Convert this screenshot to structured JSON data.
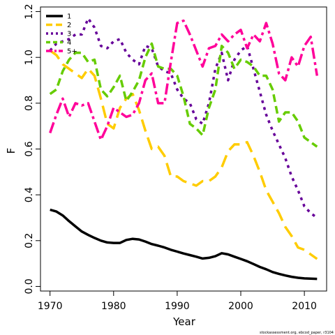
{
  "chart_data": {
    "type": "line",
    "xlabel": "Year",
    "ylabel": "F",
    "xlim": [
      1968.5,
      2013.5
    ],
    "ylim": [
      -0.02,
      1.22
    ],
    "xticks": [
      1970,
      1980,
      1990,
      2000,
      2010
    ],
    "yticks": [
      0.0,
      0.2,
      0.4,
      0.6,
      0.8,
      1.0,
      1.2
    ],
    "ytick_labels": [
      "0.0",
      "0.2",
      "0.4",
      "0.6",
      "0.8",
      "1.0",
      "1.2"
    ],
    "grid": false,
    "legend_position": "top-left",
    "footer": "stockassessment.org, ebcod_paper, r3104",
    "x": [
      1970,
      1971,
      1972,
      1973,
      1974,
      1975,
      1976,
      1977,
      1978,
      1979,
      1980,
      1981,
      1982,
      1983,
      1984,
      1985,
      1986,
      1987,
      1988,
      1989,
      1990,
      1991,
      1992,
      1993,
      1994,
      1995,
      1996,
      1997,
      1998,
      1999,
      2000,
      2001,
      2002,
      2003,
      2004,
      2005,
      2006,
      2007,
      2008,
      2009,
      2010,
      2011,
      2012
    ],
    "series": [
      {
        "name": "1",
        "color": "#000000",
        "dash": "solid",
        "values": [
          0.335,
          0.327,
          0.31,
          0.285,
          0.262,
          0.24,
          0.225,
          0.212,
          0.2,
          0.192,
          0.19,
          0.19,
          0.203,
          0.208,
          0.205,
          0.196,
          0.185,
          0.178,
          0.17,
          0.16,
          0.152,
          0.144,
          0.137,
          0.13,
          0.122,
          0.125,
          0.132,
          0.145,
          0.14,
          0.13,
          0.12,
          0.11,
          0.098,
          0.085,
          0.075,
          0.063,
          0.055,
          0.048,
          0.042,
          0.038,
          0.035,
          0.034,
          0.033
        ]
      },
      {
        "name": "2",
        "color": "#ffcc00",
        "dash": "long",
        "values": [
          1.03,
          1.01,
          0.97,
          0.95,
          0.93,
          0.91,
          0.95,
          0.92,
          0.82,
          0.71,
          0.69,
          0.78,
          0.82,
          0.84,
          0.77,
          0.68,
          0.6,
          0.61,
          0.57,
          0.48,
          0.48,
          0.46,
          0.45,
          0.44,
          0.46,
          0.46,
          0.48,
          0.52,
          0.59,
          0.62,
          0.62,
          0.63,
          0.57,
          0.5,
          0.42,
          0.37,
          0.32,
          0.26,
          0.22,
          0.17,
          0.16,
          0.14,
          0.12
        ]
      },
      {
        "name": "3",
        "color": "#660099",
        "dash": "dotted",
        "values": [
          1.03,
          1.06,
          1.07,
          1.08,
          1.1,
          1.1,
          1.17,
          1.13,
          1.05,
          1.04,
          1.07,
          1.08,
          1.02,
          0.99,
          0.97,
          1.05,
          1.04,
          0.96,
          0.94,
          0.93,
          0.86,
          0.82,
          0.8,
          0.73,
          0.71,
          0.8,
          0.95,
          1.02,
          0.9,
          0.99,
          1.03,
          1.05,
          0.95,
          0.85,
          0.75,
          0.68,
          0.62,
          0.56,
          0.48,
          0.42,
          0.35,
          0.32,
          0.3
        ]
      },
      {
        "name": "4",
        "color": "#66cc00",
        "dash": "medium",
        "values": [
          0.84,
          0.86,
          0.94,
          0.99,
          1.02,
          1.02,
          0.98,
          0.99,
          0.86,
          0.83,
          0.87,
          0.92,
          0.81,
          0.85,
          0.9,
          1.0,
          1.06,
          0.96,
          0.95,
          0.95,
          0.92,
          0.83,
          0.71,
          0.69,
          0.66,
          0.78,
          0.86,
          1.05,
          1.02,
          0.95,
          0.99,
          0.98,
          0.96,
          0.92,
          0.92,
          0.86,
          0.72,
          0.76,
          0.76,
          0.72,
          0.65,
          0.63,
          0.61
        ]
      },
      {
        "name": "5+",
        "color": "#ff0099",
        "dash": "dashdot",
        "values": [
          0.67,
          0.75,
          0.82,
          0.74,
          0.8,
          0.79,
          0.8,
          0.72,
          0.64,
          0.7,
          0.78,
          0.76,
          0.74,
          0.75,
          0.8,
          0.9,
          0.93,
          0.8,
          0.8,
          0.98,
          1.15,
          1.16,
          1.1,
          1.03,
          0.96,
          1.04,
          1.05,
          1.1,
          1.07,
          1.1,
          1.12,
          1.04,
          1.1,
          1.07,
          1.15,
          1.06,
          0.93,
          0.9,
          1.0,
          0.96,
          1.05,
          1.09,
          0.92
        ]
      }
    ]
  }
}
